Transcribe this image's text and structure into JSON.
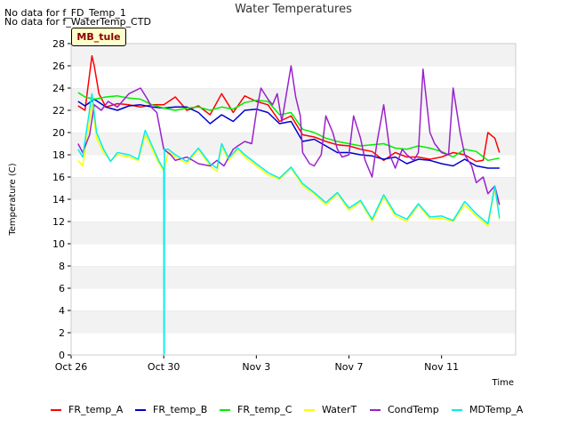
{
  "notes": [
    "No data for f_FD_Temp_1",
    "No data for f_WaterTemp_CTD"
  ],
  "badge": "MB_tule",
  "chart_data": {
    "type": "line",
    "title": "Water Temperatures",
    "xlabel": "Time",
    "ylabel": "Temperature (C)",
    "ylim": [
      0,
      28
    ],
    "yticks": [
      0,
      2,
      4,
      6,
      8,
      10,
      12,
      14,
      16,
      18,
      20,
      22,
      24,
      26,
      28
    ],
    "xlim": [
      0,
      19.2
    ],
    "xticks": [
      {
        "x": 0,
        "label": "Oct 26"
      },
      {
        "x": 4,
        "label": "Oct 30"
      },
      {
        "x": 8,
        "label": "Nov 3"
      },
      {
        "x": 12,
        "label": "Nov 7"
      },
      {
        "x": 16,
        "label": "Nov 11"
      }
    ],
    "x_unit": "days from Oct 26",
    "grid": "horizontal bands",
    "legend_position": "bottom",
    "series": [
      {
        "name": "FR_temp_A",
        "color": "#ff0000",
        "x": [
          0.3,
          0.6,
          0.9,
          1.0,
          1.2,
          1.5,
          2,
          2.5,
          3,
          3.5,
          4,
          4.5,
          5,
          5.5,
          6,
          6.5,
          7,
          7.5,
          8,
          8.5,
          9,
          9.5,
          10,
          10.5,
          11,
          11.5,
          12,
          12.5,
          13,
          13.5,
          14,
          14.5,
          15,
          15.5,
          16,
          16.5,
          17,
          17.5,
          17.8,
          18,
          18.3,
          18.5
        ],
        "y": [
          22.4,
          22.0,
          26.9,
          26.0,
          23.5,
          22.3,
          22.6,
          22.5,
          22.3,
          22.5,
          22.5,
          23.2,
          22.0,
          22.4,
          21.6,
          23.5,
          21.8,
          23.3,
          22.8,
          22.5,
          21.0,
          21.5,
          19.8,
          19.6,
          19.2,
          18.9,
          18.8,
          18.5,
          18.3,
          17.5,
          18.2,
          17.8,
          17.8,
          17.6,
          17.8,
          18.2,
          18.0,
          17.4,
          17.5,
          20.0,
          19.5,
          18.2
        ]
      },
      {
        "name": "FR_temp_B",
        "color": "#0000cc",
        "x": [
          0.3,
          0.6,
          1.0,
          1.5,
          2,
          2.5,
          3,
          3.5,
          4,
          4.5,
          5,
          5.5,
          6,
          6.5,
          7,
          7.5,
          8,
          8.5,
          9,
          9.5,
          10,
          10.5,
          11,
          11.5,
          12,
          12.5,
          13,
          13.5,
          14,
          14.5,
          15,
          15.5,
          16,
          16.5,
          17,
          17.5,
          18,
          18.5
        ],
        "y": [
          22.8,
          22.4,
          23.0,
          22.3,
          22.0,
          22.4,
          22.5,
          22.3,
          22.2,
          22.3,
          22.3,
          21.8,
          20.8,
          21.6,
          21.0,
          22.0,
          22.1,
          21.8,
          20.8,
          21.0,
          19.2,
          19.4,
          18.8,
          18.2,
          18.2,
          18.0,
          17.9,
          17.6,
          17.8,
          17.2,
          17.6,
          17.5,
          17.2,
          17.0,
          17.6,
          17.0,
          16.8,
          16.8
        ]
      },
      {
        "name": "FR_temp_C",
        "color": "#00ee00",
        "x": [
          0.3,
          0.6,
          1.0,
          1.5,
          2,
          2.5,
          3,
          3.5,
          4,
          4.5,
          5,
          5.5,
          6,
          6.5,
          7,
          7.5,
          8,
          8.5,
          9,
          9.5,
          10,
          10.5,
          11,
          11.5,
          12,
          12.5,
          13,
          13.5,
          14,
          14.5,
          15,
          15.5,
          16,
          16.5,
          17,
          17.5,
          18,
          18.5
        ],
        "y": [
          23.6,
          23.2,
          23.0,
          23.2,
          23.3,
          23.1,
          23.0,
          22.5,
          22.2,
          22.0,
          22.2,
          22.3,
          22.0,
          22.3,
          22.1,
          22.7,
          22.9,
          22.8,
          21.6,
          21.8,
          20.3,
          20.0,
          19.5,
          19.2,
          19.0,
          18.8,
          18.9,
          19.0,
          18.6,
          18.5,
          18.8,
          18.6,
          18.3,
          17.8,
          18.5,
          18.3,
          17.5,
          17.7
        ]
      },
      {
        "name": "WaterT",
        "color": "#ffff00",
        "x": [
          0.3,
          0.5,
          0.9,
          1.1,
          1.4,
          1.7,
          2,
          2.5,
          2.9,
          3.2,
          3.5,
          3.8,
          4.0,
          4.2,
          4.5,
          5,
          5.5,
          6,
          6.3,
          6.5,
          6.8,
          7.2,
          7.5,
          8,
          8.5,
          9,
          9.5,
          10,
          10.5,
          11,
          11.5,
          12,
          12.5,
          13,
          13.5,
          14,
          14.5,
          15,
          15.5,
          16,
          16.5,
          17,
          17.5,
          18,
          18.3,
          18.5
        ],
        "y": [
          17.5,
          17.0,
          22.5,
          19.5,
          18.2,
          17.5,
          18.0,
          17.8,
          17.5,
          19.8,
          18.5,
          17.2,
          16.5,
          18.3,
          17.8,
          17.2,
          18.5,
          17.0,
          16.5,
          18.8,
          17.5,
          18.5,
          17.8,
          17.0,
          16.2,
          15.8,
          16.8,
          15.2,
          14.5,
          13.5,
          14.5,
          13.0,
          13.8,
          12.0,
          14.2,
          12.5,
          12.0,
          13.5,
          12.2,
          12.3,
          12.0,
          13.5,
          12.5,
          11.6,
          15.0,
          12.2
        ]
      },
      {
        "name": "CondTemp",
        "color": "#9922cc",
        "x": [
          0.3,
          0.5,
          0.8,
          1.0,
          1.3,
          1.6,
          2,
          2.5,
          3,
          3.3,
          3.5,
          3.7,
          4,
          4.3,
          4.5,
          5,
          5.5,
          6,
          6.3,
          6.6,
          7,
          7.2,
          7.5,
          7.8,
          8,
          8.2,
          8.5,
          8.7,
          8.9,
          9.1,
          9.3,
          9.5,
          9.7,
          9.9,
          10,
          10.3,
          10.5,
          10.8,
          11,
          11.3,
          11.5,
          11.7,
          12,
          12.2,
          12.5,
          12.7,
          13,
          13.2,
          13.5,
          13.8,
          14,
          14.3,
          14.5,
          14.8,
          15,
          15.2,
          15.5,
          15.7,
          16,
          16.3,
          16.5,
          16.8,
          17,
          17.3,
          17.5,
          17.8,
          18,
          18.3,
          18.5
        ],
        "y": [
          19.0,
          18.2,
          19.8,
          22.5,
          22.0,
          22.8,
          22.3,
          23.5,
          24.0,
          23.0,
          22.2,
          21.8,
          18.5,
          18.0,
          17.5,
          17.8,
          17.2,
          17.0,
          17.5,
          17.0,
          18.5,
          18.8,
          19.2,
          19.0,
          21.8,
          24.0,
          23.0,
          22.5,
          23.5,
          21.0,
          23.5,
          26.0,
          23.2,
          21.5,
          18.2,
          17.2,
          17.0,
          18.0,
          21.5,
          20.0,
          18.5,
          17.8,
          18.0,
          21.5,
          19.5,
          17.5,
          16.0,
          19.0,
          22.5,
          17.8,
          16.8,
          18.5,
          18.0,
          17.5,
          18.2,
          25.7,
          20.0,
          19.0,
          18.2,
          18.0,
          24.0,
          20.0,
          18.0,
          17.0,
          15.5,
          16.0,
          14.5,
          15.2,
          13.5
        ]
      },
      {
        "name": "MDTemp_A",
        "color": "#00eeee",
        "x": [
          0.3,
          0.5,
          0.9,
          1.1,
          1.4,
          1.7,
          2,
          2.5,
          2.9,
          3.2,
          3.5,
          3.8,
          4.0,
          4.01,
          4.02,
          4.03,
          4.2,
          4.5,
          5,
          5.5,
          6,
          6.3,
          6.5,
          6.8,
          7.2,
          7.5,
          8,
          8.5,
          9,
          9.5,
          10,
          10.5,
          11,
          11.5,
          12,
          12.5,
          13,
          13.5,
          14,
          14.5,
          15,
          15.5,
          16,
          16.5,
          17,
          17.5,
          18,
          18.3,
          18.5
        ],
        "y": [
          18.5,
          17.8,
          23.5,
          20.0,
          18.5,
          17.4,
          18.2,
          18.0,
          17.6,
          20.2,
          18.8,
          17.4,
          16.7,
          0.0,
          0.0,
          18.5,
          18.5,
          18.0,
          17.4,
          18.6,
          17.2,
          16.8,
          19.0,
          17.7,
          18.6,
          18.0,
          17.2,
          16.4,
          15.9,
          16.9,
          15.4,
          14.6,
          13.7,
          14.6,
          13.2,
          13.9,
          12.2,
          14.4,
          12.7,
          12.2,
          13.6,
          12.4,
          12.5,
          12.1,
          13.8,
          12.7,
          11.8,
          15.2,
          12.3
        ]
      }
    ]
  },
  "legend": [
    {
      "label": "FR_temp_A",
      "color": "#ff0000"
    },
    {
      "label": "FR_temp_B",
      "color": "#0000cc"
    },
    {
      "label": "FR_temp_C",
      "color": "#00ee00"
    },
    {
      "label": "WaterT",
      "color": "#ffff00"
    },
    {
      "label": "CondTemp",
      "color": "#9922cc"
    },
    {
      "label": "MDTemp_A",
      "color": "#00eeee"
    }
  ]
}
